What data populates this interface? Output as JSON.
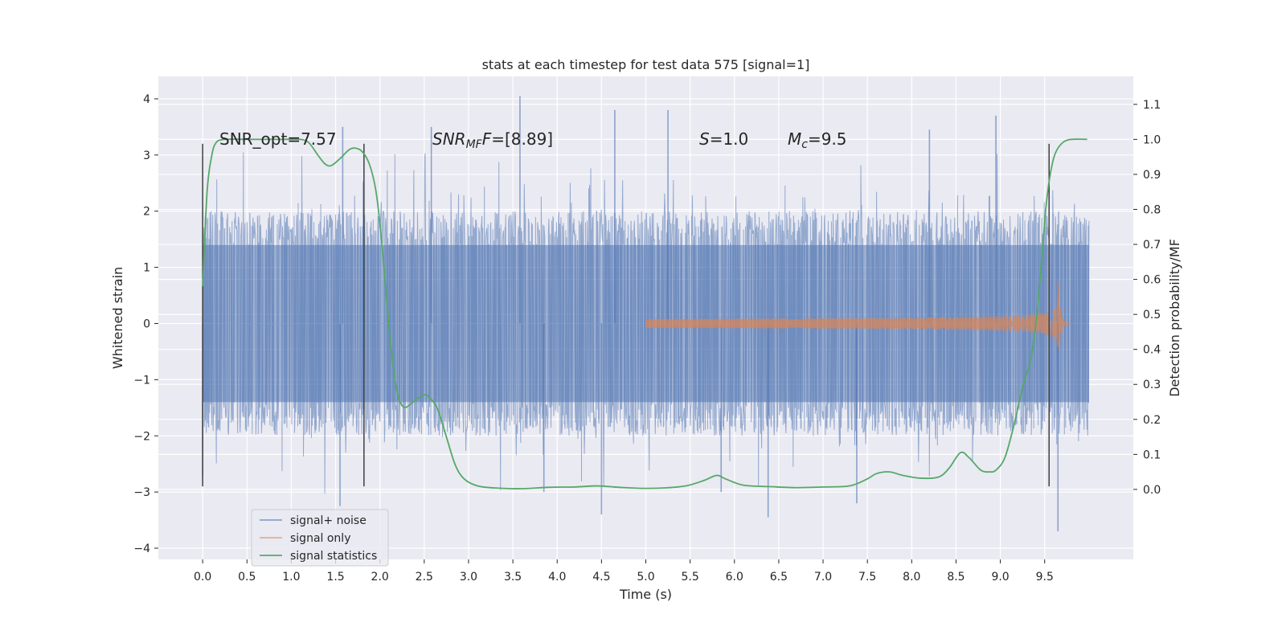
{
  "chart_data": {
    "type": "line",
    "title": "stats at each timestep for test data 575 [signal=1]",
    "xlabel": "Time (s)",
    "ylabel": "Whitened strain",
    "ylabel_right": "Detection probability/MF",
    "xlim": [
      -0.5,
      10.5
    ],
    "ylim": [
      -4.2,
      4.4
    ],
    "ylim_right": [
      -0.2,
      1.18
    ],
    "x_ticks": [
      "0.0",
      "0.5",
      "1.0",
      "1.5",
      "2.0",
      "2.5",
      "3.0",
      "3.5",
      "4.0",
      "4.5",
      "5.0",
      "5.5",
      "6.0",
      "6.5",
      "7.0",
      "7.5",
      "8.0",
      "8.5",
      "9.0",
      "9.5"
    ],
    "y_ticks": [
      "4",
      "3",
      "2",
      "1",
      "0",
      "−1",
      "−2",
      "−3",
      "−4"
    ],
    "y_right_ticks": [
      "1.1",
      "1.0",
      "0.9",
      "0.8",
      "0.7",
      "0.6",
      "0.5",
      "0.4",
      "0.3",
      "0.2",
      "0.1",
      "0.0"
    ],
    "grid": true,
    "legend_position": "lower-left",
    "annotations": {
      "snr_opt": "SNR_opt=7.57",
      "snr_mf_name": "SNR",
      "snr_mf_sub": "MF",
      "snr_mf_value": "=[8.89]",
      "s_name": "S",
      "s_value": "=1.0",
      "mc_name": "M",
      "mc_sub": "c",
      "mc_value": "=9.5"
    },
    "vertical_markers_x": [
      0.0,
      1.82,
      9.55
    ],
    "series": [
      {
        "name": "signal+ noise",
        "color": "#4c72b0",
        "axis": "left",
        "duration": 10.0,
        "envelope_core": 1.4,
        "peaks": [
          {
            "x": 1.58,
            "y": 3.5
          },
          {
            "x": 1.55,
            "y": -3.25
          },
          {
            "x": 3.58,
            "y": 4.05
          },
          {
            "x": 2.58,
            "y": 3.5
          },
          {
            "x": 5.25,
            "y": 3.8
          },
          {
            "x": 4.65,
            "y": 3.8
          },
          {
            "x": 8.95,
            "y": 3.7
          },
          {
            "x": 8.2,
            "y": 3.45
          },
          {
            "x": 6.38,
            "y": -3.45
          },
          {
            "x": 4.5,
            "y": -3.4
          },
          {
            "x": 9.65,
            "y": -3.7
          },
          {
            "x": 7.38,
            "y": -3.2
          },
          {
            "x": 0.0,
            "y": -2.7
          },
          {
            "x": 3.85,
            "y": -3.0
          },
          {
            "x": 5.85,
            "y": -3.0
          }
        ]
      },
      {
        "name": "signal only",
        "color": "#dd8452",
        "axis": "left",
        "chirp_start": 5.0,
        "merger_time": 9.65,
        "peak_amplitude": 0.88,
        "end_time": 10.0
      },
      {
        "name": "signal statistics",
        "color": "#55a868",
        "axis": "right",
        "points": [
          [
            0.0,
            0.58
          ],
          [
            0.05,
            0.85
          ],
          [
            0.1,
            0.95
          ],
          [
            0.15,
            0.99
          ],
          [
            0.25,
            1.0
          ],
          [
            0.5,
            1.0
          ],
          [
            0.9,
            1.0
          ],
          [
            1.1,
            1.0
          ],
          [
            1.2,
            0.99
          ],
          [
            1.3,
            0.955
          ],
          [
            1.38,
            0.93
          ],
          [
            1.45,
            0.925
          ],
          [
            1.55,
            0.945
          ],
          [
            1.65,
            0.97
          ],
          [
            1.72,
            0.975
          ],
          [
            1.8,
            0.965
          ],
          [
            1.88,
            0.93
          ],
          [
            1.95,
            0.86
          ],
          [
            2.0,
            0.76
          ],
          [
            2.05,
            0.62
          ],
          [
            2.1,
            0.47
          ],
          [
            2.15,
            0.35
          ],
          [
            2.2,
            0.27
          ],
          [
            2.25,
            0.24
          ],
          [
            2.3,
            0.235
          ],
          [
            2.4,
            0.255
          ],
          [
            2.5,
            0.27
          ],
          [
            2.55,
            0.265
          ],
          [
            2.65,
            0.23
          ],
          [
            2.75,
            0.15
          ],
          [
            2.85,
            0.07
          ],
          [
            2.95,
            0.03
          ],
          [
            3.1,
            0.01
          ],
          [
            3.3,
            0.004
          ],
          [
            3.6,
            0.002
          ],
          [
            3.9,
            0.006
          ],
          [
            4.2,
            0.007
          ],
          [
            4.45,
            0.01
          ],
          [
            4.7,
            0.006
          ],
          [
            4.95,
            0.003
          ],
          [
            5.2,
            0.004
          ],
          [
            5.45,
            0.01
          ],
          [
            5.65,
            0.025
          ],
          [
            5.8,
            0.04
          ],
          [
            5.9,
            0.03
          ],
          [
            6.1,
            0.012
          ],
          [
            6.4,
            0.008
          ],
          [
            6.7,
            0.005
          ],
          [
            7.0,
            0.007
          ],
          [
            7.3,
            0.01
          ],
          [
            7.5,
            0.03
          ],
          [
            7.6,
            0.045
          ],
          [
            7.75,
            0.05
          ],
          [
            7.9,
            0.04
          ],
          [
            8.1,
            0.032
          ],
          [
            8.3,
            0.035
          ],
          [
            8.42,
            0.06
          ],
          [
            8.55,
            0.105
          ],
          [
            8.65,
            0.09
          ],
          [
            8.78,
            0.055
          ],
          [
            8.88,
            0.05
          ],
          [
            8.95,
            0.055
          ],
          [
            9.05,
            0.09
          ],
          [
            9.15,
            0.18
          ],
          [
            9.25,
            0.29
          ],
          [
            9.35,
            0.38
          ],
          [
            9.42,
            0.52
          ],
          [
            9.48,
            0.7
          ],
          [
            9.52,
            0.82
          ],
          [
            9.57,
            0.91
          ],
          [
            9.62,
            0.96
          ],
          [
            9.7,
            0.99
          ],
          [
            9.8,
            1.0
          ],
          [
            9.98,
            1.0
          ]
        ]
      }
    ]
  }
}
